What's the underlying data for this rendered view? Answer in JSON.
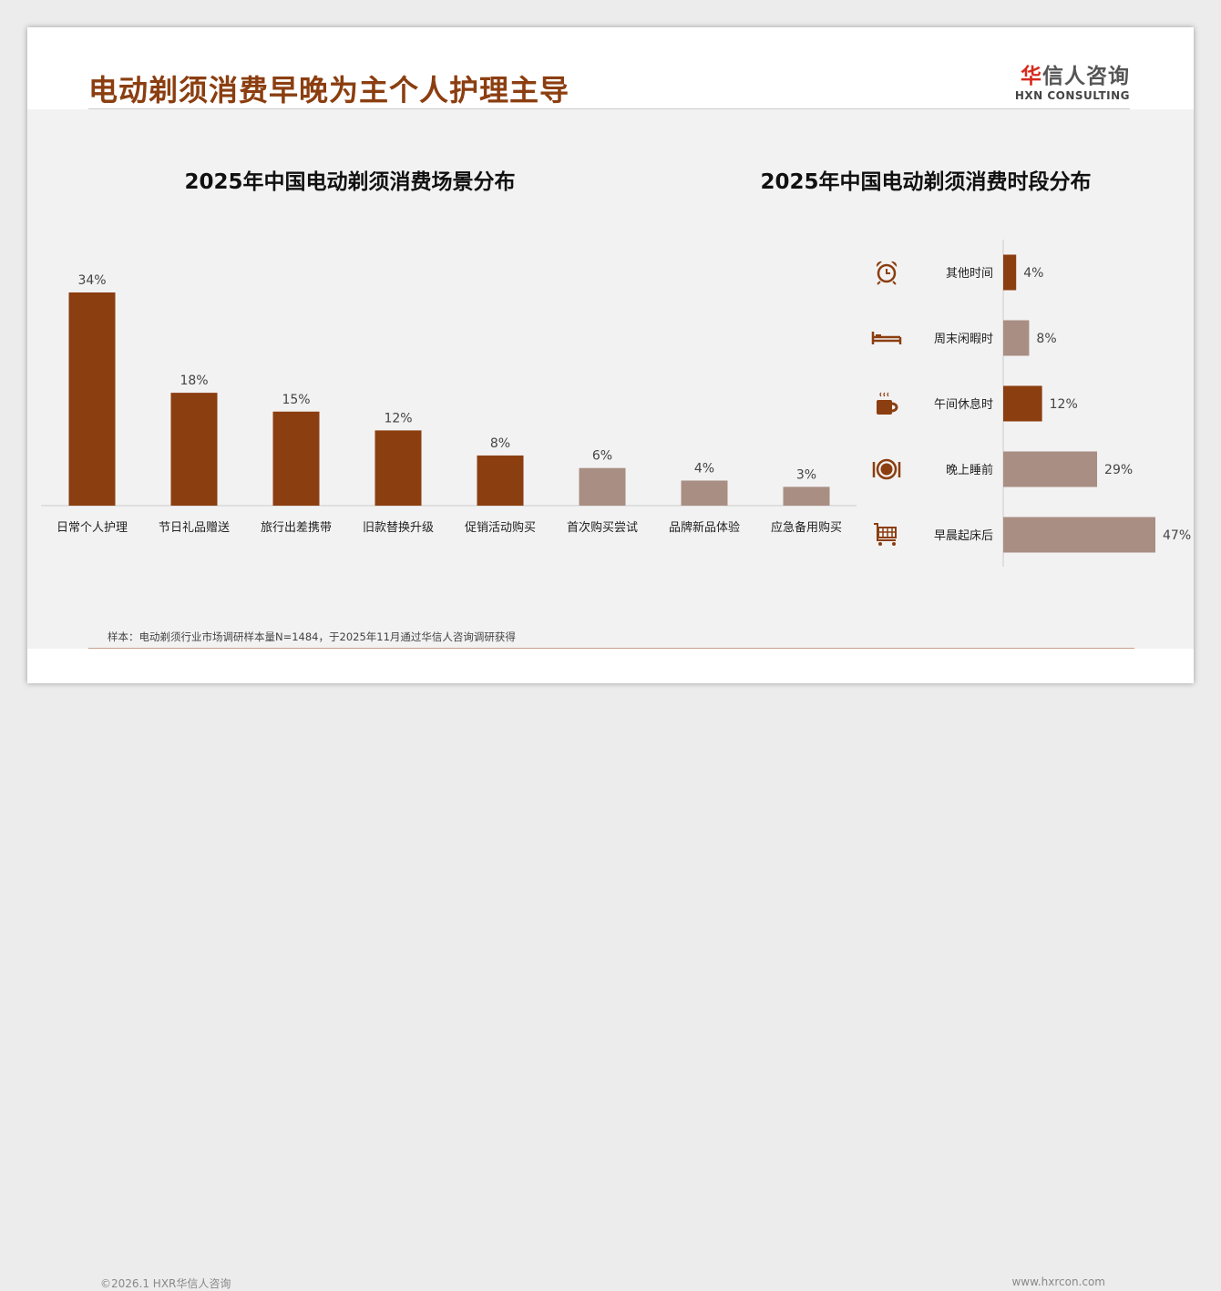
{
  "header": {
    "title": "电动剃须消费早晚为主个人护理主导",
    "logo_cn": "华信人咨询",
    "logo_en": "HXN CONSULTING"
  },
  "footer": {
    "source": "样本：电动剃须行业市场调研样本量N=1484，于2025年11月通过华信人咨询调研获得",
    "copyright": "©2026.1 HXR华信人咨询",
    "url": "www.hxrcon.com"
  },
  "colors": {
    "primary": "#8B3E10",
    "secondary": "#A98E84",
    "title": "#8B3E10"
  },
  "chart_data": [
    {
      "type": "bar",
      "title": "2025年中国电动剃须消费场景分布",
      "categories": [
        "日常个人护理",
        "节日礼品赠送",
        "旅行出差携带",
        "旧款替换升级",
        "促销活动购买",
        "首次购买尝试",
        "品牌新品体验",
        "应急备用购买"
      ],
      "values": [
        34,
        18,
        15,
        12,
        8,
        6,
        4,
        3
      ],
      "labels": [
        "34%",
        "18%",
        "15%",
        "12%",
        "8%",
        "6%",
        "4%",
        "3%"
      ],
      "highlight": [
        true,
        true,
        true,
        true,
        true,
        false,
        false,
        false
      ],
      "ylim": [
        0,
        34
      ],
      "unit": "%"
    },
    {
      "type": "bar",
      "orientation": "horizontal",
      "title": "2025年中国电动剃须消费时段分布",
      "categories": [
        "其他时间",
        "周末闲暇时",
        "午间休息时",
        "晚上睡前",
        "早晨起床后"
      ],
      "values": [
        4,
        8,
        12,
        29,
        47
      ],
      "labels": [
        "4%",
        "8%",
        "12%",
        "29%",
        "47%"
      ],
      "icons": [
        "alarm-clock-icon",
        "bed-icon",
        "coffee-cup-icon",
        "plate-cutlery-icon",
        "shopping-cart-icon"
      ],
      "highlight": [
        true,
        false,
        true,
        false,
        false
      ],
      "xlim": [
        0,
        47
      ],
      "unit": "%"
    }
  ]
}
